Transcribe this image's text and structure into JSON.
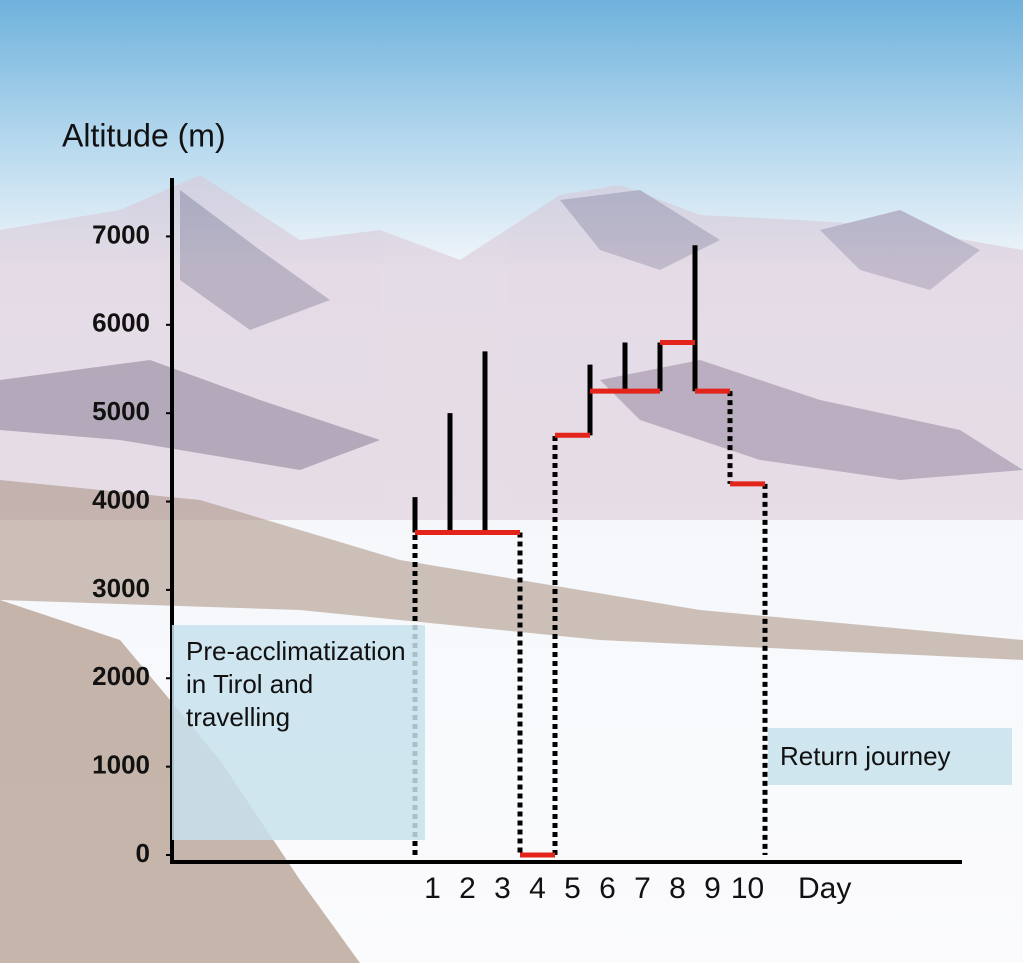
{
  "chart_data": {
    "type": "step",
    "y_label": "Altitude (m)",
    "x_label": "Day",
    "categories": [
      "1",
      "2",
      "3",
      "4",
      "5",
      "6",
      "7",
      "8",
      "9",
      "10"
    ],
    "series": [
      {
        "color": "#e3241b",
        "values": [
          3650,
          3650,
          3650,
          0,
          4750,
          5250,
          5250,
          5800,
          5250,
          4200
        ]
      },
      {
        "color": "#000000",
        "values": [
          4050,
          5000,
          5700,
          null,
          null,
          5550,
          5800,
          5800,
          6900,
          null
        ]
      }
    ],
    "ylim": [
      0,
      7650
    ],
    "yticks": [
      0,
      1000,
      2000,
      3000,
      4000,
      5000,
      6000,
      7000
    ],
    "annotations": [
      "Pre-acclimatization in Tirol and travelling",
      "Return journey"
    ]
  }
}
